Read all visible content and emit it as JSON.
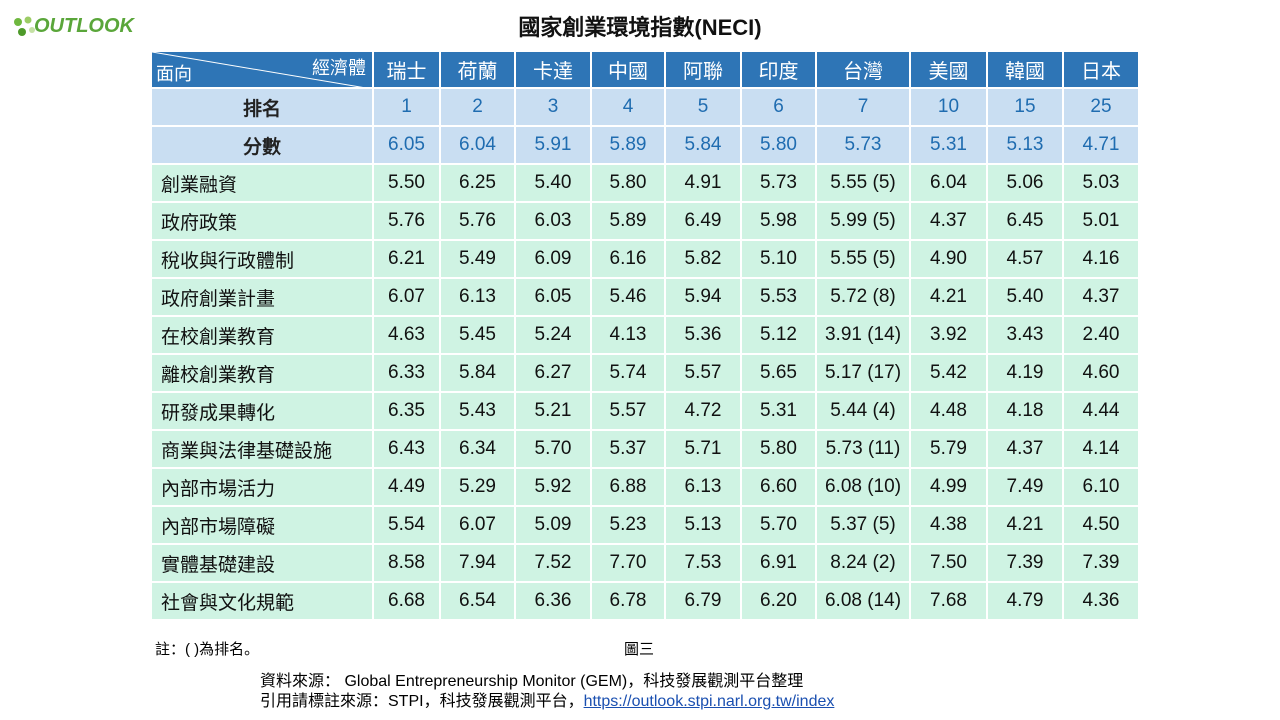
{
  "logo": "OUTLOOK",
  "title": "國家創業環境指數(NECI)",
  "table": {
    "corner_top": "經濟體",
    "corner_bottom": "面向",
    "columns": [
      "瑞士",
      "荷蘭",
      "卡達",
      "中國",
      "阿聯",
      "印度",
      "台灣",
      "美國",
      "韓國",
      "日本"
    ],
    "rank_row": {
      "label": "排名",
      "values": [
        "1",
        "2",
        "3",
        "4",
        "5",
        "6",
        "7",
        "10",
        "15",
        "25"
      ]
    },
    "score_row": {
      "label": "分數",
      "values": [
        "6.05",
        "6.04",
        "5.91",
        "5.89",
        "5.84",
        "5.80",
        "5.73",
        "5.31",
        "5.13",
        "4.71"
      ]
    },
    "rows": [
      {
        "label": "創業融資",
        "values": [
          "5.50",
          "6.25",
          "5.40",
          "5.80",
          "4.91",
          "5.73",
          "5.55 (5)",
          "6.04",
          "5.06",
          "5.03"
        ]
      },
      {
        "label": "政府政策",
        "values": [
          "5.76",
          "5.76",
          "6.03",
          "5.89",
          "6.49",
          "5.98",
          "5.99 (5)",
          "4.37",
          "6.45",
          "5.01"
        ]
      },
      {
        "label": "稅收與行政體制",
        "values": [
          "6.21",
          "5.49",
          "6.09",
          "6.16",
          "5.82",
          "5.10",
          "5.55 (5)",
          "4.90",
          "4.57",
          "4.16"
        ]
      },
      {
        "label": "政府創業計畫",
        "values": [
          "6.07",
          "6.13",
          "6.05",
          "5.46",
          "5.94",
          "5.53",
          "5.72 (8)",
          "4.21",
          "5.40",
          "4.37"
        ]
      },
      {
        "label": "在校創業教育",
        "values": [
          "4.63",
          "5.45",
          "5.24",
          "4.13",
          "5.36",
          "5.12",
          "3.91 (14)",
          "3.92",
          "3.43",
          "2.40"
        ]
      },
      {
        "label": "離校創業教育",
        "values": [
          "6.33",
          "5.84",
          "6.27",
          "5.74",
          "5.57",
          "5.65",
          "5.17 (17)",
          "5.42",
          "4.19",
          "4.60"
        ]
      },
      {
        "label": "研發成果轉化",
        "values": [
          "6.35",
          "5.43",
          "5.21",
          "5.57",
          "4.72",
          "5.31",
          "5.44 (4)",
          "4.48",
          "4.18",
          "4.44"
        ]
      },
      {
        "label": "商業與法律基礎設施",
        "values": [
          "6.43",
          "6.34",
          "5.70",
          "5.37",
          "5.71",
          "5.80",
          "5.73 (11)",
          "5.79",
          "4.37",
          "4.14"
        ]
      },
      {
        "label": "內部市場活力",
        "values": [
          "4.49",
          "5.29",
          "5.92",
          "6.88",
          "6.13",
          "6.60",
          "6.08 (10)",
          "4.99",
          "7.49",
          "6.10"
        ]
      },
      {
        "label": "內部市場障礙",
        "values": [
          "5.54",
          "6.07",
          "5.09",
          "5.23",
          "5.13",
          "5.70",
          "5.37 (5)",
          "4.38",
          "4.21",
          "4.50"
        ]
      },
      {
        "label": "實體基礎建設",
        "values": [
          "8.58",
          "7.94",
          "7.52",
          "7.70",
          "7.53",
          "6.91",
          "8.24 (2)",
          "7.50",
          "7.39",
          "7.39"
        ]
      },
      {
        "label": "社會與文化規範",
        "values": [
          "6.68",
          "6.54",
          "6.36",
          "6.78",
          "6.79",
          "6.20",
          "6.08 (14)",
          "7.68",
          "4.79",
          "4.36"
        ]
      }
    ]
  },
  "note": "註：( )為排名。",
  "figure_label": "圖三",
  "source": {
    "line1": "資料來源： Global Entrepreneurship Monitor (GEM)，科技發展觀測平台整理",
    "line2_prefix": "引用請標註來源：STPI，科技發展觀測平台，",
    "link": "https://outlook.stpi.narl.org.tw/index"
  }
}
